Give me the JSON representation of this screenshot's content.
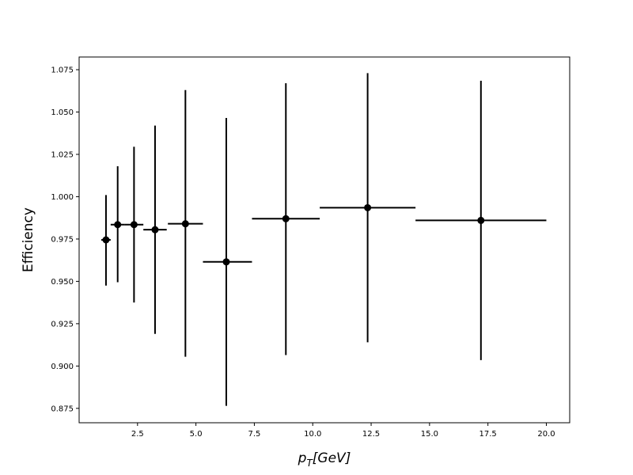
{
  "chart_data": {
    "type": "scatter",
    "title": "",
    "xlabel": {
      "base": "p",
      "sub": "T",
      "rest": "[GeV]"
    },
    "ylabel": "Efficiency",
    "xlim": [
      0.0,
      21.0
    ],
    "ylim": [
      0.8665,
      1.0825
    ],
    "xticks": [
      2.5,
      5.0,
      7.5,
      10.0,
      12.5,
      15.0,
      17.5,
      20.0
    ],
    "xtick_labels": [
      "2.5",
      "5.0",
      "7.5",
      "10.0",
      "12.5",
      "15.0",
      "17.5",
      "20.0"
    ],
    "yticks": [
      0.875,
      0.9,
      0.925,
      0.95,
      0.975,
      1.0,
      1.025,
      1.05,
      1.075
    ],
    "ytick_labels": [
      "0.875",
      "0.900",
      "0.925",
      "0.950",
      "0.975",
      "1.000",
      "1.025",
      "1.050",
      "1.075"
    ],
    "grid": false,
    "color": "#000000",
    "points": [
      {
        "x": 1.15,
        "y": 0.9745,
        "xlo": 0.95,
        "xhi": 1.35,
        "ylo": 0.9475,
        "yhi": 1.001
      },
      {
        "x": 1.65,
        "y": 0.9835,
        "xlo": 1.35,
        "xhi": 1.95,
        "ylo": 0.9495,
        "yhi": 1.018
      },
      {
        "x": 2.35,
        "y": 0.9835,
        "xlo": 1.95,
        "xhi": 2.75,
        "ylo": 0.9375,
        "yhi": 1.0295
      },
      {
        "x": 3.25,
        "y": 0.9805,
        "xlo": 2.75,
        "xhi": 3.75,
        "ylo": 0.919,
        "yhi": 1.042
      },
      {
        "x": 4.55,
        "y": 0.984,
        "xlo": 3.8,
        "xhi": 5.3,
        "ylo": 0.9055,
        "yhi": 1.063
      },
      {
        "x": 6.3,
        "y": 0.9615,
        "xlo": 5.3,
        "xhi": 7.4,
        "ylo": 0.8765,
        "yhi": 1.0465
      },
      {
        "x": 8.85,
        "y": 0.987,
        "xlo": 7.4,
        "xhi": 10.3,
        "ylo": 0.9065,
        "yhi": 1.067
      },
      {
        "x": 12.35,
        "y": 0.9935,
        "xlo": 10.3,
        "xhi": 14.4,
        "ylo": 0.914,
        "yhi": 1.073
      },
      {
        "x": 17.2,
        "y": 0.986,
        "xlo": 14.4,
        "xhi": 20.0,
        "ylo": 0.9035,
        "yhi": 1.0685
      }
    ]
  }
}
